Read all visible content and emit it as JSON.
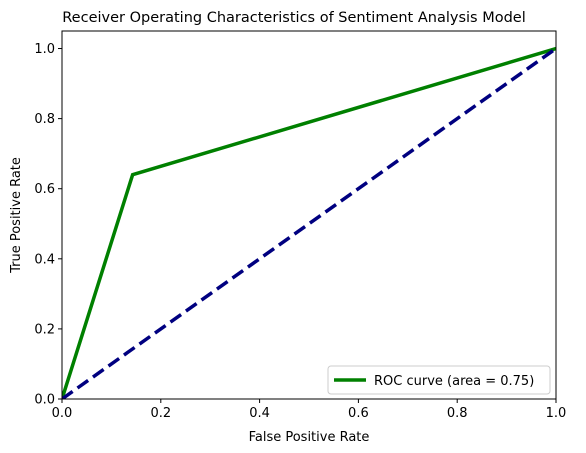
{
  "chart_data": {
    "type": "line",
    "title": "Receiver Operating Characteristics of Sentiment Analysis Model",
    "xlabel": "False Positive Rate",
    "ylabel": "True Positive Rate",
    "xlim": [
      0.0,
      1.0
    ],
    "ylim": [
      0.0,
      1.05
    ],
    "xticks": [
      0.0,
      0.2,
      0.4,
      0.6,
      0.8,
      1.0
    ],
    "yticks": [
      0.0,
      0.2,
      0.4,
      0.6,
      0.8,
      1.0
    ],
    "xtick_labels": [
      "0.0",
      "0.2",
      "0.4",
      "0.6",
      "0.8",
      "1.0"
    ],
    "ytick_labels": [
      "0.0",
      "0.2",
      "0.4",
      "0.6",
      "0.8",
      "1.0"
    ],
    "grid": false,
    "legend_position": "lower-right",
    "series": [
      {
        "name": "ROC curve (area = 0.75)",
        "color": "#008000",
        "style": "solid",
        "show_in_legend": true,
        "x": [
          0.0,
          0.143,
          1.0
        ],
        "y": [
          0.0,
          0.64,
          1.0
        ]
      },
      {
        "name": "",
        "color": "#000080",
        "style": "dashed",
        "show_in_legend": false,
        "x": [
          0.0,
          1.0
        ],
        "y": [
          0.0,
          1.0
        ]
      }
    ]
  }
}
